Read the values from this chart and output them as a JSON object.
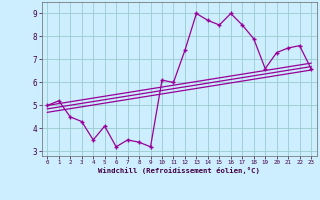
{
  "xlabel": "Windchill (Refroidissement éolien,°C)",
  "x_data": [
    0,
    1,
    2,
    3,
    4,
    5,
    6,
    7,
    8,
    9,
    10,
    11,
    12,
    13,
    14,
    15,
    16,
    17,
    18,
    19,
    20,
    21,
    22,
    23
  ],
  "y_main": [
    5.0,
    5.2,
    4.5,
    4.3,
    3.5,
    4.1,
    3.2,
    3.5,
    3.4,
    3.2,
    6.1,
    6.0,
    7.4,
    9.0,
    8.7,
    8.5,
    9.0,
    8.5,
    7.9,
    6.6,
    7.3,
    7.5,
    7.6,
    6.6
  ],
  "y_upper": [
    5.0,
    5.08,
    5.16,
    5.24,
    5.32,
    5.4,
    5.48,
    5.56,
    5.64,
    5.72,
    5.8,
    5.88,
    5.96,
    6.04,
    6.12,
    6.2,
    6.28,
    6.36,
    6.44,
    6.52,
    6.6,
    6.68,
    6.76,
    6.84
  ],
  "y_mid": [
    4.85,
    4.93,
    5.01,
    5.09,
    5.17,
    5.25,
    5.33,
    5.41,
    5.49,
    5.57,
    5.65,
    5.73,
    5.81,
    5.89,
    5.97,
    6.05,
    6.13,
    6.21,
    6.29,
    6.37,
    6.45,
    6.53,
    6.61,
    6.69
  ],
  "y_lower": [
    4.7,
    4.78,
    4.86,
    4.94,
    5.02,
    5.1,
    5.18,
    5.26,
    5.34,
    5.42,
    5.5,
    5.58,
    5.66,
    5.74,
    5.82,
    5.9,
    5.98,
    6.06,
    6.14,
    6.22,
    6.3,
    6.38,
    6.46,
    6.54
  ],
  "line_color": "#990099",
  "bg_color": "#cceeff",
  "grid_color": "#99cccc",
  "ylim": [
    2.8,
    9.5
  ],
  "yticks": [
    3,
    4,
    5,
    6,
    7,
    8,
    9
  ],
  "xlim": [
    -0.5,
    23.5
  ],
  "xticks": [
    0,
    1,
    2,
    3,
    4,
    5,
    6,
    7,
    8,
    9,
    10,
    11,
    12,
    13,
    14,
    15,
    16,
    17,
    18,
    19,
    20,
    21,
    22,
    23
  ]
}
